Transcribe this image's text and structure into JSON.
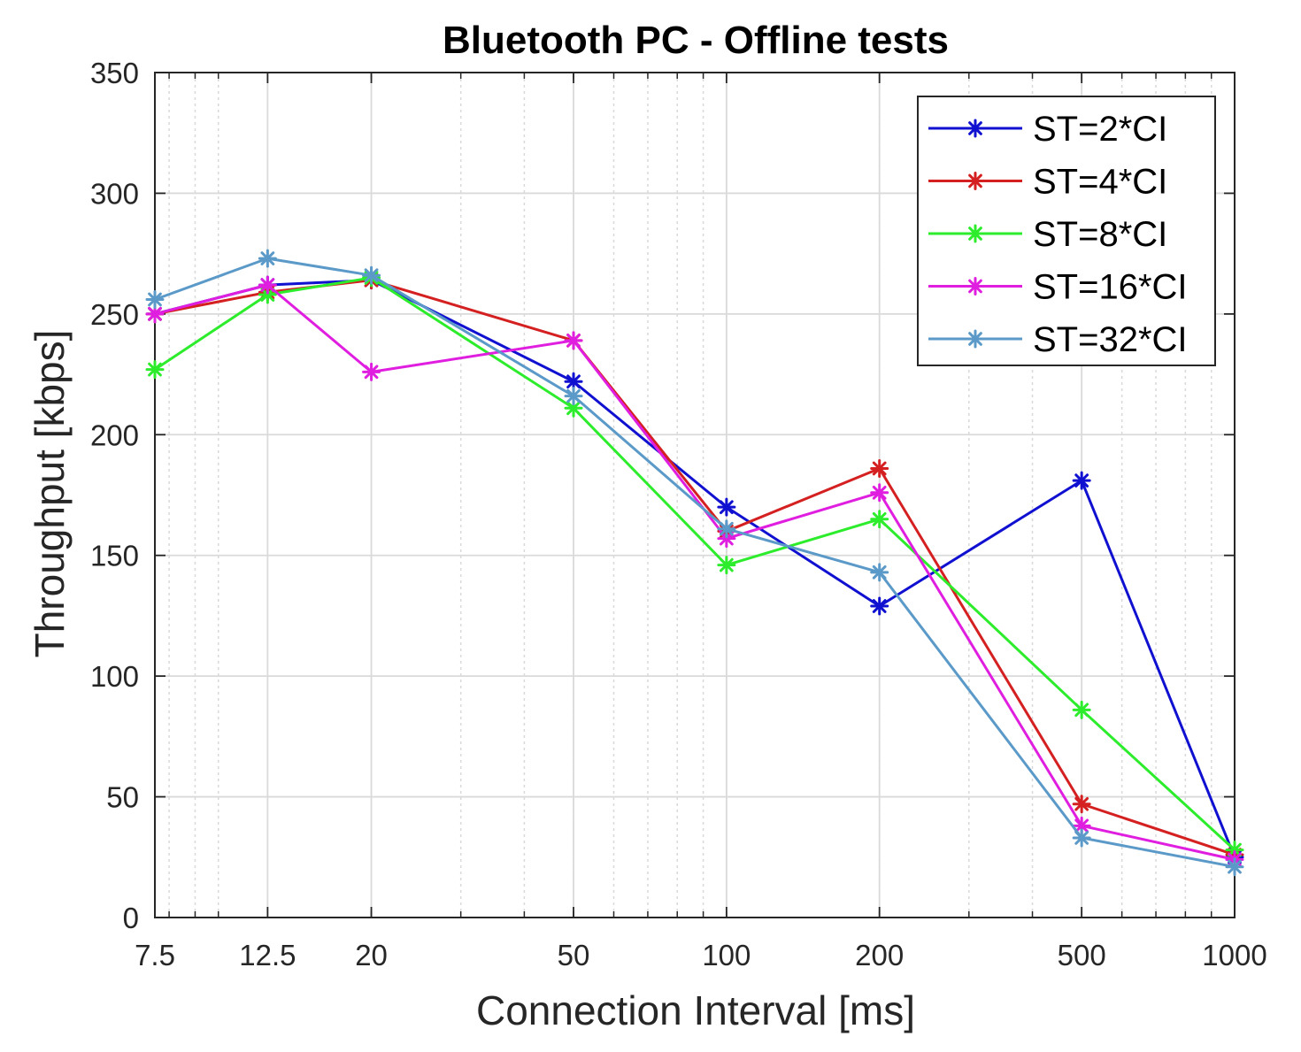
{
  "chart_data": {
    "type": "line",
    "title": "Bluetooth PC - Offline tests",
    "xlabel": "Connection Interval [ms]",
    "ylabel": "Throughput [kbps]",
    "x_scale": "log",
    "x": [
      7.5,
      12.5,
      20,
      50,
      100,
      200,
      500,
      1000
    ],
    "xticks": [
      7.5,
      12.5,
      20,
      50,
      100,
      200,
      500,
      1000
    ],
    "xtick_labels": [
      "7.5",
      "12.5",
      "20",
      "50",
      "100",
      "200",
      "500",
      "1000"
    ],
    "xlim": [
      7.5,
      1000
    ],
    "ylim": [
      0,
      350
    ],
    "yticks": [
      0,
      50,
      100,
      150,
      200,
      250,
      300,
      350
    ],
    "ytick_labels": [
      "0",
      "50",
      "100",
      "150",
      "200",
      "250",
      "300",
      "350"
    ],
    "grid": true,
    "minor_grid": true,
    "marker": "asterisk",
    "legend_position": "top-right",
    "series": [
      {
        "name": "ST=2*CI",
        "color": "#1010d0",
        "values": [
          250,
          262,
          264,
          222,
          170,
          129,
          181,
          25
        ]
      },
      {
        "name": "ST=4*CI",
        "color": "#d42020",
        "values": [
          250,
          259,
          264,
          239,
          160,
          186,
          47,
          26
        ]
      },
      {
        "name": "ST=8*CI",
        "color": "#2cec2c",
        "values": [
          227,
          258,
          265,
          211,
          146,
          165,
          86,
          28
        ]
      },
      {
        "name": "ST=16*CI",
        "color": "#e01ee0",
        "values": [
          250,
          262,
          226,
          239,
          157,
          176,
          38,
          24
        ]
      },
      {
        "name": "ST=32*CI",
        "color": "#5b9ac8",
        "values": [
          256,
          273,
          266,
          216,
          161,
          143,
          33,
          21
        ]
      }
    ]
  }
}
